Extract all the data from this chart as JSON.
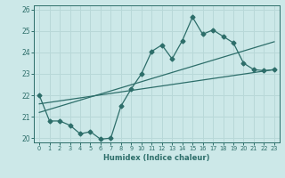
{
  "title": "",
  "xlabel": "Humidex (Indice chaleur)",
  "ylabel": "",
  "bg_color": "#cce8e8",
  "grid_color": "#b8d8d8",
  "line_color": "#2d6e6a",
  "xlim": [
    -0.5,
    23.5
  ],
  "ylim": [
    19.8,
    26.2
  ],
  "xticks": [
    0,
    1,
    2,
    3,
    4,
    5,
    6,
    7,
    8,
    9,
    10,
    11,
    12,
    13,
    14,
    15,
    16,
    17,
    18,
    19,
    20,
    21,
    22,
    23
  ],
  "yticks": [
    20,
    21,
    22,
    23,
    24,
    25,
    26
  ],
  "series1_x": [
    0,
    1,
    2,
    3,
    4,
    5,
    6,
    7,
    8,
    9,
    10,
    11,
    12,
    13,
    14,
    15,
    16,
    17,
    18,
    19,
    20,
    21,
    22,
    23
  ],
  "series1_y": [
    22.0,
    20.8,
    20.8,
    20.6,
    20.2,
    20.3,
    19.95,
    20.0,
    21.5,
    22.3,
    23.0,
    24.05,
    24.35,
    23.7,
    24.55,
    25.65,
    24.85,
    25.05,
    24.75,
    24.45,
    23.5,
    23.2,
    23.15,
    23.2
  ],
  "series2_x": [
    0,
    23
  ],
  "series2_y": [
    21.6,
    23.2
  ],
  "series3_x": [
    0,
    23
  ],
  "series3_y": [
    21.2,
    24.5
  ],
  "series1_has_markers": true
}
